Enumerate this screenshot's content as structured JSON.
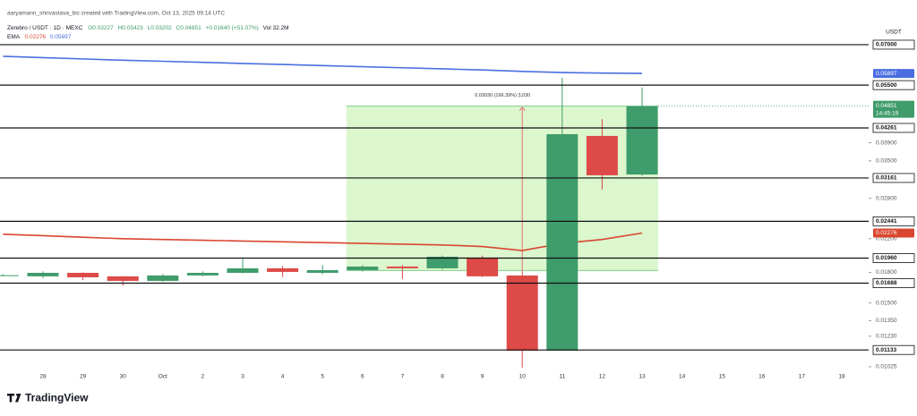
{
  "header": {
    "attribution": "aaryamann_shrivastava_bic created with TradingView.com, Oct 13, 2025 09:14 UTC",
    "symbol": "Zerebro / USDT · 1D · MEXC",
    "open": "O0.03227",
    "high": "H0.05423",
    "low": "L0.03202",
    "close": "C0.04851",
    "change": "+0.01640 (+51.07%)",
    "volume": "Vol 32.2M",
    "ema_label": "EMA"
  },
  "currency": "USDT",
  "countdown": "14:45:19",
  "brand": "TradingView",
  "chart_data": {
    "type": "candlestick",
    "categories": [
      null,
      "28",
      "29",
      "30",
      "Oct",
      "2",
      "3",
      "4",
      "5",
      "6",
      "7",
      "8",
      "9",
      "10",
      "11",
      "12",
      "13",
      "14",
      "15",
      "16",
      "17",
      "18"
    ],
    "open": [
      0.0177,
      0.01758,
      0.01795,
      0.01758,
      0.01711,
      0.01767,
      0.01795,
      0.01844,
      0.01795,
      0.01824,
      0.01864,
      0.01844,
      0.01966,
      0.01767,
      0.01128,
      0.04062,
      0.03227,
      null,
      null,
      null,
      null,
      null
    ],
    "high": [
      0.0178,
      0.0181,
      0.018,
      0.0176,
      0.0178,
      0.0181,
      0.0195,
      0.0187,
      0.0188,
      0.0188,
      0.0188,
      0.0199,
      0.0199,
      0.0182,
      0.0575,
      0.0449,
      0.05423,
      null,
      null,
      null,
      null,
      null
    ],
    "low": [
      0.0176,
      0.0174,
      0.0172,
      0.0166,
      0.017,
      0.0176,
      0.0179,
      0.0175,
      0.0178,
      0.0181,
      0.0173,
      0.0183,
      0.0175,
      0.0102,
      0.0113,
      0.0295,
      0.03202,
      null,
      null,
      null,
      null,
      null
    ],
    "close": [
      0.0177,
      0.01795,
      0.01748,
      0.01711,
      0.01767,
      0.01795,
      0.01844,
      0.01805,
      0.01824,
      0.01864,
      0.01844,
      0.01976,
      0.01758,
      0.01128,
      0.04105,
      0.03212,
      0.04851,
      null,
      null,
      null,
      null,
      null
    ],
    "up_color": "#3f9c6b",
    "down_color": "#dd4a48",
    "ema": [
      {
        "color": "#d9462f",
        "values": [
          0.0226,
          0.0224,
          0.0222,
          0.022,
          0.0219,
          0.0218,
          0.0217,
          0.0216,
          0.0215,
          0.0214,
          0.0213,
          0.0212,
          0.021,
          0.0205,
          0.0214,
          0.0219,
          0.02276,
          null,
          null,
          null,
          null,
          null
        ]
      },
      {
        "color": "#4a6ee0",
        "values": [
          0.0653,
          0.0648,
          0.0643,
          0.0638,
          0.0634,
          0.063,
          0.0626,
          0.0622,
          0.0618,
          0.0614,
          0.061,
          0.0606,
          0.0602,
          0.0597,
          0.0593,
          0.0591,
          0.05897,
          null,
          null,
          null,
          null,
          null
        ]
      }
    ],
    "log_scale": true,
    "ylim": [
      0.01014,
      0.0787
    ],
    "yticks": [
      {
        "value": 0.039,
        "label": "0.03900"
      },
      {
        "value": 0.035,
        "label": "0.03500"
      },
      {
        "value": 0.028,
        "label": "0.02800"
      },
      {
        "value": 0.022,
        "label": "0.02200"
      },
      {
        "value": 0.018,
        "label": "0.01800"
      },
      {
        "value": 0.015,
        "label": "0.01500"
      },
      {
        "value": 0.0135,
        "label": "0.01350"
      },
      {
        "value": 0.0123,
        "label": "0.01230"
      },
      {
        "value": 0.01025,
        "label": "0.01025"
      }
    ],
    "levels": [
      {
        "value": 0.07,
        "label": "0.07000"
      },
      {
        "value": 0.055,
        "label": "0.05500"
      },
      {
        "value": 0.04261,
        "label": "0.04261"
      },
      {
        "value": 0.03161,
        "label": "0.03161"
      },
      {
        "value": 0.02441,
        "label": "0.02441"
      },
      {
        "value": 0.0196,
        "label": "0.01960"
      },
      {
        "value": 0.01688,
        "label": "0.01688"
      },
      {
        "value": 0.01133,
        "label": "0.01133"
      }
    ],
    "measure": {
      "from": 0.0182,
      "to": 0.04851,
      "start": "6",
      "end": "13",
      "arrow_at": "10",
      "label": "0.03030 (166.39%) 3,030"
    }
  }
}
